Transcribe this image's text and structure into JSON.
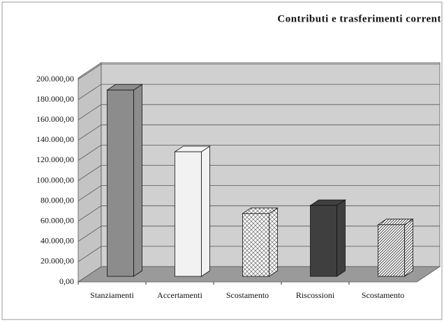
{
  "chart_data": {
    "type": "bar3d",
    "title": "Contributi e trasferimenti corrent",
    "categories": [
      "Stanziamenti",
      "Accertamenti",
      "Scostamento",
      "Riscossioni",
      "Scostamento"
    ],
    "values": [
      184000,
      123000,
      62000,
      70000,
      51000
    ],
    "colors": [
      "#8c8c8c",
      "#f2f2f2",
      "#ffffff",
      "#3f3f3f",
      "#ffffff"
    ],
    "hatch": [
      null,
      null,
      "cross",
      null,
      "diagonal"
    ],
    "ylim": [
      0,
      200000
    ],
    "yticks": [
      {
        "value": 0,
        "label": "0,00"
      },
      {
        "value": 20000,
        "label": "20.000,00"
      },
      {
        "value": 40000,
        "label": "40.000,00"
      },
      {
        "value": 60000,
        "label": "60.000,00"
      },
      {
        "value": 80000,
        "label": "80.000,00"
      },
      {
        "value": 100000,
        "label": "100.000,00"
      },
      {
        "value": 120000,
        "label": "120.000,00"
      },
      {
        "value": 140000,
        "label": "140.000,00"
      },
      {
        "value": 160000,
        "label": "160.000,00"
      },
      {
        "value": 180000,
        "label": "180.000,00"
      },
      {
        "value": 200000,
        "label": "200.000,00"
      }
    ],
    "grid": true
  }
}
